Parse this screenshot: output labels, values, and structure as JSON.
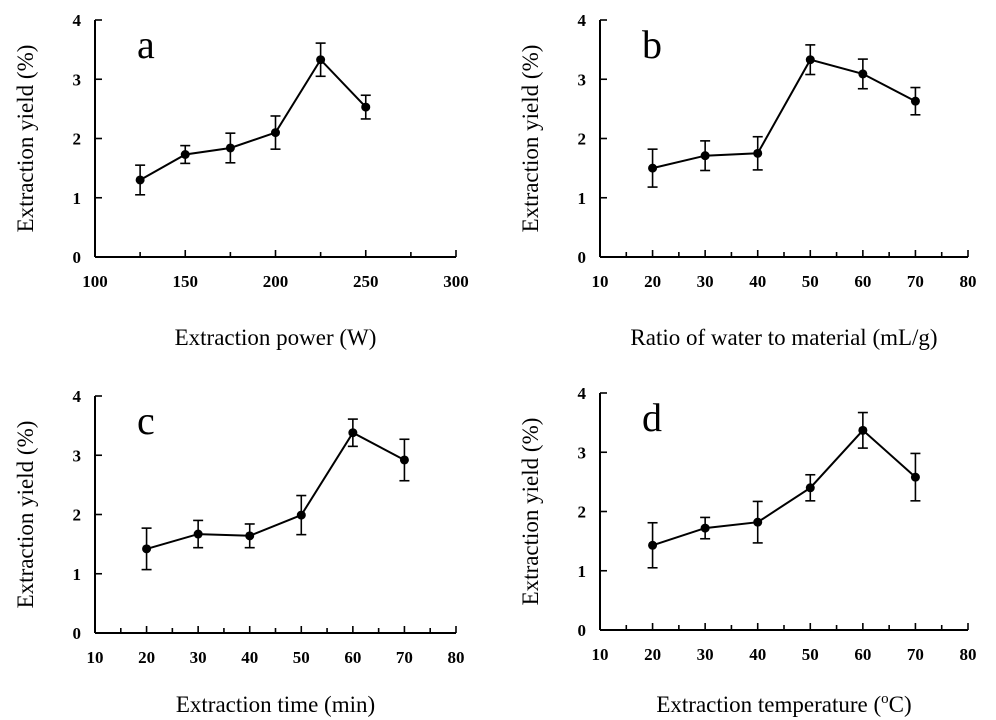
{
  "chart_data": [
    {
      "type": "line",
      "panel_label": "a",
      "xlabel": "Extraction power (W)",
      "ylabel": "Extraction yield (%)",
      "xlim": [
        100,
        300
      ],
      "ylim": [
        0,
        4
      ],
      "xticks": [
        100,
        150,
        200,
        250,
        300
      ],
      "yticks": [
        0,
        1,
        2,
        3,
        4
      ],
      "x": [
        125,
        150,
        175,
        200,
        225,
        250
      ],
      "y": [
        1.3,
        1.73,
        1.84,
        2.1,
        3.33,
        2.53
      ],
      "error": [
        0.25,
        0.15,
        0.25,
        0.28,
        0.28,
        0.2
      ]
    },
    {
      "type": "line",
      "panel_label": "b",
      "xlabel": "Ratio of water to material (mL/g)",
      "ylabel": "Extraction yield (%)",
      "xlim": [
        10,
        80
      ],
      "ylim": [
        0,
        4
      ],
      "xticks": [
        10,
        20,
        30,
        40,
        50,
        60,
        70,
        80
      ],
      "yticks": [
        0,
        1,
        2,
        3,
        4
      ],
      "x": [
        20,
        30,
        40,
        50,
        60,
        70
      ],
      "y": [
        1.5,
        1.71,
        1.75,
        3.33,
        3.09,
        2.63
      ],
      "error": [
        0.32,
        0.25,
        0.28,
        0.25,
        0.25,
        0.23
      ]
    },
    {
      "type": "line",
      "panel_label": "c",
      "xlabel": "Extraction time (min)",
      "ylabel": "Extraction yield (%)",
      "xlim": [
        10,
        80
      ],
      "ylim": [
        0,
        4
      ],
      "xticks": [
        10,
        20,
        30,
        40,
        50,
        60,
        70,
        80
      ],
      "yticks": [
        0,
        1,
        2,
        3,
        4
      ],
      "x": [
        20,
        30,
        40,
        50,
        60,
        70
      ],
      "y": [
        1.42,
        1.67,
        1.64,
        1.99,
        3.38,
        2.92
      ],
      "error": [
        0.35,
        0.23,
        0.2,
        0.33,
        0.23,
        0.35
      ]
    },
    {
      "type": "line",
      "panel_label": "d",
      "xlabel": "Extraction temperature (",
      "xlabel_sup": "o",
      "xlabel_tail": "C)",
      "ylabel": "Extraction yield (%)",
      "xlim": [
        10,
        80
      ],
      "ylim": [
        0,
        4
      ],
      "xticks": [
        10,
        20,
        30,
        40,
        50,
        60,
        70,
        80
      ],
      "yticks": [
        0,
        1,
        2,
        3,
        4
      ],
      "x": [
        20,
        30,
        40,
        50,
        60,
        70
      ],
      "y": [
        1.43,
        1.72,
        1.82,
        2.4,
        3.37,
        2.58
      ],
      "error": [
        0.38,
        0.18,
        0.35,
        0.22,
        0.3,
        0.4
      ]
    }
  ]
}
